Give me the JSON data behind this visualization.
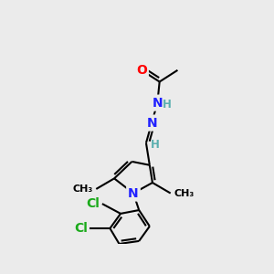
{
  "bg_color": "#ebebeb",
  "atom_colors": {
    "C": "#000000",
    "N": "#2020ff",
    "O": "#ff0000",
    "Cl": "#1aaa1a",
    "H": "#5aafaf"
  },
  "bond_color": "#000000",
  "bond_lw": 1.5,
  "font_size_heavy": 10,
  "font_size_h": 8.5,
  "font_size_methyl": 8
}
